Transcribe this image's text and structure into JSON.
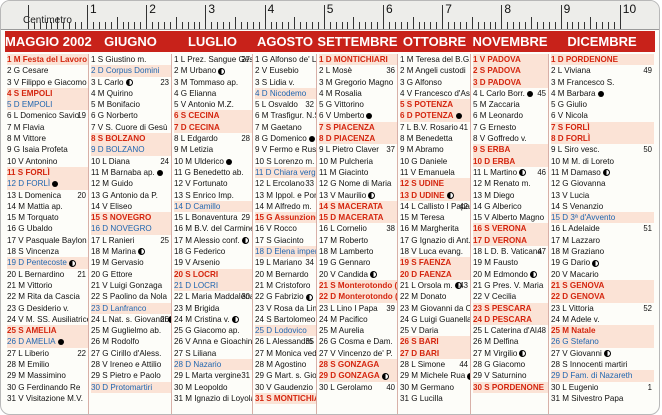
{
  "ruler": {
    "label": "Centimetro",
    "numbers": [
      "1",
      "2",
      "3",
      "4",
      "5",
      "6",
      "7",
      "8",
      "9",
      "10"
    ]
  },
  "months": [
    {
      "name": "MAGGIO 2002",
      "days": [
        {
          "t": "1 M Festa del Lavoro",
          "k": "holiday"
        },
        {
          "t": "2 G Cesare"
        },
        {
          "t": "3 V Filippo e Giacomo",
          "moon": "half"
        },
        {
          "t": "4 S EMPOLI",
          "k": "holiday"
        },
        {
          "t": "5 D EMPOLI",
          "k": "sunday"
        },
        {
          "t": "6 L Domenico Savio",
          "n": "19"
        },
        {
          "t": "7 M Flavia"
        },
        {
          "t": "8 M Vittore"
        },
        {
          "t": "9 G Isaia Profeta"
        },
        {
          "t": "10 V Antonino"
        },
        {
          "t": "11 S FORLÌ",
          "k": "holiday"
        },
        {
          "t": "12 D FORLÌ",
          "k": "sunday",
          "moon": "full"
        },
        {
          "t": "13 L Domenica",
          "n": "20"
        },
        {
          "t": "14 M Mattia ap."
        },
        {
          "t": "15 M Torquato"
        },
        {
          "t": "16 G Ubaldo"
        },
        {
          "t": "17 V Pasquale Baylon"
        },
        {
          "t": "18 S Vincenza"
        },
        {
          "t": "19 D Pentecoste",
          "k": "sunday",
          "moon": "half"
        },
        {
          "t": "20 L Bernardino",
          "n": "21"
        },
        {
          "t": "21 M Vittorio"
        },
        {
          "t": "22 M Rita da Cascia"
        },
        {
          "t": "23 G Desiderio v."
        },
        {
          "t": "24 V M. SS. Ausiliatrice"
        },
        {
          "t": "25 S AMELIA",
          "k": "holiday"
        },
        {
          "t": "26 D AMELIA",
          "k": "sunday",
          "moon": "full"
        },
        {
          "t": "27 L Liberio",
          "n": "22"
        },
        {
          "t": "28 M Emilio"
        },
        {
          "t": "29 M Massimino"
        },
        {
          "t": "30 G Ferdinando Re"
        },
        {
          "t": "31 V Visitazione M.V."
        }
      ]
    },
    {
      "name": "GIUGNO",
      "days": [
        {
          "t": "1 S Giustino m."
        },
        {
          "t": "2 D Corpus Domini",
          "k": "sunday"
        },
        {
          "t": "3 L Carlo",
          "n": "23",
          "moon": "half"
        },
        {
          "t": "4 M Quirino"
        },
        {
          "t": "5 M Bonifacio"
        },
        {
          "t": "6 G Norberto"
        },
        {
          "t": "7 V S. Cuore di Gesù"
        },
        {
          "t": "8 S BOLZANO",
          "k": "holiday"
        },
        {
          "t": "9 D BOLZANO",
          "k": "sunday"
        },
        {
          "t": "10 L Diana",
          "n": "24"
        },
        {
          "t": "11 M Barnaba ap.",
          "moon": "full"
        },
        {
          "t": "12 M Guido"
        },
        {
          "t": "13 G Antonio da P."
        },
        {
          "t": "14 V Eliseo"
        },
        {
          "t": "15 S NOVEGRO",
          "k": "holiday"
        },
        {
          "t": "16 D NOVEGRO",
          "k": "sunday"
        },
        {
          "t": "17 L Ranieri",
          "n": "25"
        },
        {
          "t": "18 M Marina",
          "moon": "half"
        },
        {
          "t": "19 M Gervasio"
        },
        {
          "t": "20 G Ettore"
        },
        {
          "t": "21 V Luigi Gonzaga"
        },
        {
          "t": "22 S Paolino da Nola"
        },
        {
          "t": "23 D Lanfranco",
          "k": "sunday"
        },
        {
          "t": "24 L Nat. s. Giovanni",
          "n": "26",
          "moon": "half"
        },
        {
          "t": "25 M Guglielmo ab."
        },
        {
          "t": "26 M Rodolfo"
        },
        {
          "t": "27 G Cirillo d'Aless."
        },
        {
          "t": "28 V Ireneo e Attilio"
        },
        {
          "t": "29 S Pietro e Paolo"
        },
        {
          "t": "30 D Protomartiri",
          "k": "sunday"
        }
      ]
    },
    {
      "name": "LUGLIO",
      "days": [
        {
          "t": "1 L Prez. Sangue Gesù",
          "n": "27"
        },
        {
          "t": "2 M Urbano",
          "moon": "half"
        },
        {
          "t": "3 M Tommaso ap."
        },
        {
          "t": "4 G Elianna"
        },
        {
          "t": "5 V Antonio M.Z."
        },
        {
          "t": "6 S CECINA",
          "k": "holiday"
        },
        {
          "t": "7 D CECINA",
          "k": "holiday"
        },
        {
          "t": "8 L Edgardo",
          "n": "28"
        },
        {
          "t": "9 M Letizia"
        },
        {
          "t": "10 M Ulderico",
          "moon": "full"
        },
        {
          "t": "11 G Benedetto ab."
        },
        {
          "t": "12 V Fortunato"
        },
        {
          "t": "13 S Enrico Imp."
        },
        {
          "t": "14 D Camillo",
          "k": "sunday"
        },
        {
          "t": "15 L Bonaventura",
          "n": "29"
        },
        {
          "t": "16 M B.V. del Carmine"
        },
        {
          "t": "17 M Alessio conf.",
          "moon": "half"
        },
        {
          "t": "18 G Federico"
        },
        {
          "t": "19 V Arsenio"
        },
        {
          "t": "20 S LOCRI",
          "k": "holiday"
        },
        {
          "t": "21 D LOCRI",
          "k": "sunday"
        },
        {
          "t": "22 L Maria Maddalena",
          "n": "30"
        },
        {
          "t": "23 M Brigida"
        },
        {
          "t": "24 M Cristina v.",
          "moon": "half"
        },
        {
          "t": "25 G Giacomo ap."
        },
        {
          "t": "26 V Anna e Gioachino"
        },
        {
          "t": "27 S Liliana"
        },
        {
          "t": "28 D Nazario",
          "k": "sunday"
        },
        {
          "t": "29 L Marta vergine",
          "n": "31"
        },
        {
          "t": "30 M Leopoldo"
        },
        {
          "t": "31 M Ignazio di Loyola"
        }
      ]
    },
    {
      "name": "AGOSTO",
      "days": [
        {
          "t": "1 G Alfonso de' L.",
          "moon": "half"
        },
        {
          "t": "2 V Eusebio"
        },
        {
          "t": "3 S Lidia v."
        },
        {
          "t": "4 D Nicodemo",
          "k": "sunday"
        },
        {
          "t": "5 L Osvaldo",
          "n": "32"
        },
        {
          "t": "6 M Trasfigur. N.S."
        },
        {
          "t": "7 M Gaetano"
        },
        {
          "t": "8 G Domenico",
          "moon": "full"
        },
        {
          "t": "9 V Fermo e Rust."
        },
        {
          "t": "10 S Lorenzo m."
        },
        {
          "t": "11 D Chiara vergine",
          "k": "sunday"
        },
        {
          "t": "12 L Ercolano",
          "n": "33"
        },
        {
          "t": "13 M Ippol. e Ponziano"
        },
        {
          "t": "14 M Alfredo m."
        },
        {
          "t": "15 G Assunzione S.V.",
          "k": "holiday",
          "moon": "half"
        },
        {
          "t": "16 V Rocco"
        },
        {
          "t": "17 S Giacinto"
        },
        {
          "t": "18 D Elena imper.",
          "k": "sunday"
        },
        {
          "t": "19 L Mariano",
          "n": "34"
        },
        {
          "t": "20 M Bernardo"
        },
        {
          "t": "21 M Cristoforo"
        },
        {
          "t": "22 G Fabrizio",
          "moon": "half"
        },
        {
          "t": "23 V Rosa da Lima"
        },
        {
          "t": "24 S Bartolomeo ap."
        },
        {
          "t": "25 D Lodovico",
          "k": "sunday"
        },
        {
          "t": "26 L Alessandro",
          "n": "35"
        },
        {
          "t": "27 M Monica ved."
        },
        {
          "t": "28 M Agostino"
        },
        {
          "t": "29 G Mart. s. Giovanni B."
        },
        {
          "t": "30 V Gaudenzio"
        },
        {
          "t": "31 S MONTICHIARI",
          "k": "holiday"
        }
      ]
    },
    {
      "name": "SETTEMBRE",
      "days": [
        {
          "t": "1 D MONTICHIARI",
          "k": "holiday"
        },
        {
          "t": "2 L Mosè",
          "n": "36"
        },
        {
          "t": "3 M Gregorio Magno"
        },
        {
          "t": "4 M Rosalia"
        },
        {
          "t": "5 G Vittorino"
        },
        {
          "t": "6 V Umberto",
          "moon": "full"
        },
        {
          "t": "7 S PIACENZA",
          "k": "holiday"
        },
        {
          "t": "8 D PIACENZA",
          "k": "holiday"
        },
        {
          "t": "9 L Pietro Claver",
          "n": "37"
        },
        {
          "t": "10 M Pulcheria"
        },
        {
          "t": "11 M Giacinto"
        },
        {
          "t": "12 G Nome di Maria"
        },
        {
          "t": "13 V Maurilio",
          "moon": "half"
        },
        {
          "t": "14 S MACERATA",
          "k": "holiday"
        },
        {
          "t": "15 D MACERATA",
          "k": "holiday"
        },
        {
          "t": "16 L Cornelio",
          "n": "38"
        },
        {
          "t": "17 M Roberto"
        },
        {
          "t": "18 M Lamberto"
        },
        {
          "t": "19 G Gennaro"
        },
        {
          "t": "20 V Candida",
          "moon": "half"
        },
        {
          "t": "21 S Monterotondo (Rm)",
          "k": "holiday"
        },
        {
          "t": "22 D Monterotondo (Rm)",
          "k": "holiday"
        },
        {
          "t": "23 L Lino I Papa",
          "n": "39"
        },
        {
          "t": "24 M Pacifico"
        },
        {
          "t": "25 M Aurelia"
        },
        {
          "t": "26 G Cosma e Dam."
        },
        {
          "t": "27 V Vincenzo de' P."
        },
        {
          "t": "28 S GONZAGA",
          "k": "holiday"
        },
        {
          "t": "29 D GONZAGA",
          "k": "holiday",
          "moon": "half"
        },
        {
          "t": "30 L Gerolamo",
          "n": "40"
        }
      ]
    },
    {
      "name": "OTTOBRE",
      "days": [
        {
          "t": "1 M Teresa del B.G."
        },
        {
          "t": "2 M Angeli custodi"
        },
        {
          "t": "3 G Alfonso"
        },
        {
          "t": "4 V Francesco d'Assisi"
        },
        {
          "t": "5 S POTENZA",
          "k": "holiday"
        },
        {
          "t": "6 D POTENZA",
          "k": "holiday",
          "moon": "full"
        },
        {
          "t": "7 L B.V. Rosario",
          "n": "41"
        },
        {
          "t": "8 M Benedetta"
        },
        {
          "t": "9 M Abramo"
        },
        {
          "t": "10 G Daniele"
        },
        {
          "t": "11 V Emanuela"
        },
        {
          "t": "12 S UDINE",
          "k": "holiday"
        },
        {
          "t": "13 D UDINE",
          "k": "holiday",
          "moon": "half"
        },
        {
          "t": "14 L Callisto I Papa",
          "n": "42"
        },
        {
          "t": "15 M Teresa"
        },
        {
          "t": "16 M Margherita"
        },
        {
          "t": "17 G Ignazio di Ant."
        },
        {
          "t": "18 V Luca evang."
        },
        {
          "t": "19 S FAENZA",
          "k": "holiday"
        },
        {
          "t": "20 D FAENZA",
          "k": "holiday"
        },
        {
          "t": "21 L Orsola m.",
          "n": "43",
          "moon": "half"
        },
        {
          "t": "22 M Donato"
        },
        {
          "t": "23 M Giovanni da C."
        },
        {
          "t": "24 G Luigi Guanella"
        },
        {
          "t": "25 V Daria"
        },
        {
          "t": "26 S BARI",
          "k": "holiday"
        },
        {
          "t": "27 D BARI",
          "k": "holiday"
        },
        {
          "t": "28 L Simone",
          "n": "44"
        },
        {
          "t": "29 M Michele Rua",
          "moon": "half"
        },
        {
          "t": "30 M Germano"
        },
        {
          "t": "31 G Lucilla"
        }
      ]
    },
    {
      "name": "NOVEMBRE",
      "days": [
        {
          "t": "1 V PADOVA",
          "k": "holiday"
        },
        {
          "t": "2 S PADOVA",
          "k": "holiday"
        },
        {
          "t": "3 D PADOVA",
          "k": "holiday"
        },
        {
          "t": "4 L Carlo Borr.",
          "n": "45",
          "moon": "full"
        },
        {
          "t": "5 M Zaccaria"
        },
        {
          "t": "6 M Leonardo"
        },
        {
          "t": "7 G Ernesto"
        },
        {
          "t": "8 V Goffredo v."
        },
        {
          "t": "9 S ERBA",
          "k": "holiday"
        },
        {
          "t": "10 D ERBA",
          "k": "holiday"
        },
        {
          "t": "11 L Martino",
          "n": "46",
          "moon": "half"
        },
        {
          "t": "12 M Renato m."
        },
        {
          "t": "13 M Diego"
        },
        {
          "t": "14 G Alberico"
        },
        {
          "t": "15 V Alberto Magno"
        },
        {
          "t": "16 S VERONA",
          "k": "holiday"
        },
        {
          "t": "17 D VERONA",
          "k": "holiday"
        },
        {
          "t": "18 L D. B. Vaticana",
          "n": "47"
        },
        {
          "t": "19 M Fausto"
        },
        {
          "t": "20 M Edmondo",
          "moon": "half"
        },
        {
          "t": "21 G Pres. V. Maria"
        },
        {
          "t": "22 V Cecilia"
        },
        {
          "t": "23 S PESCARA",
          "k": "holiday"
        },
        {
          "t": "24 D PESCARA",
          "k": "holiday"
        },
        {
          "t": "25 L Caterina d'Al.",
          "n": "48"
        },
        {
          "t": "26 M Delfina"
        },
        {
          "t": "27 M Virgilio",
          "moon": "half"
        },
        {
          "t": "28 G Giacomo"
        },
        {
          "t": "29 V Saturnino"
        },
        {
          "t": "30 S PORDENONE",
          "k": "holiday"
        }
      ]
    },
    {
      "name": "DICEMBRE",
      "days": [
        {
          "t": "1 D PORDENONE",
          "k": "holiday"
        },
        {
          "t": "2 L Viviana",
          "n": "49"
        },
        {
          "t": "3 M Francesco S."
        },
        {
          "t": "4 M Barbara",
          "moon": "full"
        },
        {
          "t": "5 G Giulio"
        },
        {
          "t": "6 V Nicola"
        },
        {
          "t": "7 S FORLÌ",
          "k": "holiday"
        },
        {
          "t": "8 D FORLÌ",
          "k": "holiday"
        },
        {
          "t": "9 L Siro vesc.",
          "n": "50"
        },
        {
          "t": "10 M M. di Loreto"
        },
        {
          "t": "11 M Damaso",
          "moon": "half"
        },
        {
          "t": "12 G Giovanna"
        },
        {
          "t": "13 V Lucia"
        },
        {
          "t": "14 S Venanzio"
        },
        {
          "t": "15 D 3ª d'Avvento",
          "k": "sunday"
        },
        {
          "t": "16 L Adelaide",
          "n": "51"
        },
        {
          "t": "17 M Lazzaro"
        },
        {
          "t": "18 M Graziano"
        },
        {
          "t": "19 G Dario",
          "moon": "half"
        },
        {
          "t": "20 V Macario"
        },
        {
          "t": "21 S GENOVA",
          "k": "holiday"
        },
        {
          "t": "22 D GENOVA",
          "k": "holiday"
        },
        {
          "t": "23 L Vittoria",
          "n": "52"
        },
        {
          "t": "24 M Adele v."
        },
        {
          "t": "25 M Natale",
          "k": "holiday"
        },
        {
          "t": "26 G Stefano",
          "k": "sunday"
        },
        {
          "t": "27 V Giovanni",
          "moon": "half"
        },
        {
          "t": "28 S Innocenti martiri"
        },
        {
          "t": "29 D Fam. di Nazareth",
          "k": "sunday"
        },
        {
          "t": "30 L Eugenio",
          "n": "1"
        },
        {
          "t": "31 M Silvestro Papa"
        }
      ]
    }
  ]
}
